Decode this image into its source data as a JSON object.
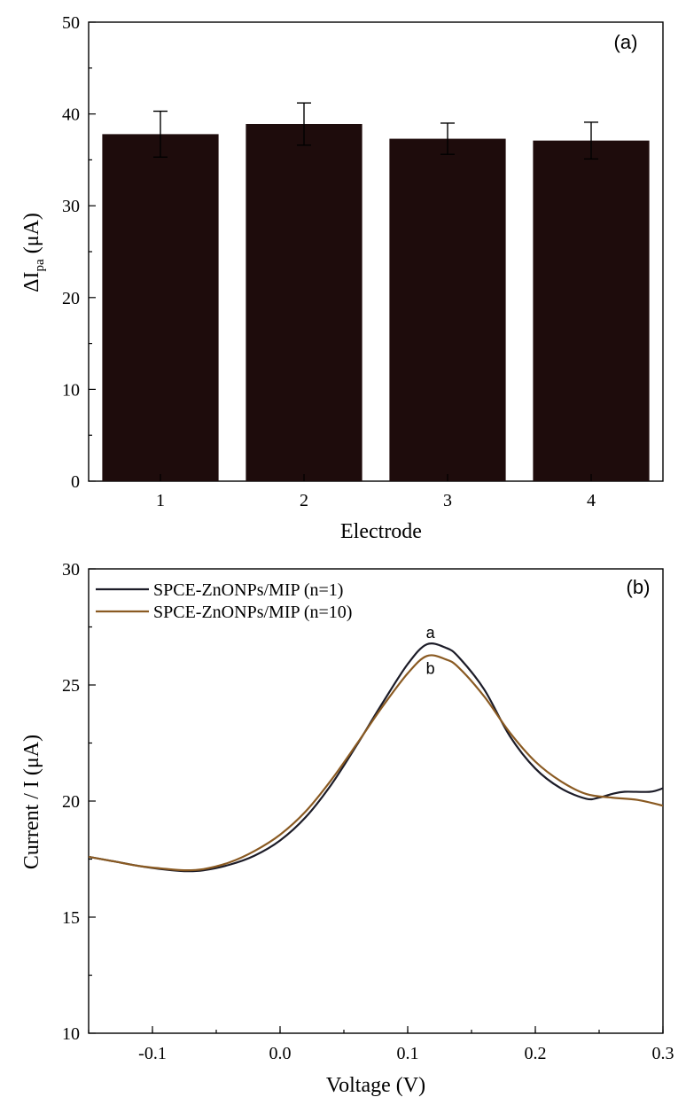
{
  "chart_data": [
    {
      "type": "bar",
      "panel_label": "(a)",
      "xlabel": "Electrode",
      "ylabel_main": "ΔI",
      "ylabel_sub": "pa",
      "ylabel_unit": "(μA)",
      "categories": [
        "1",
        "2",
        "3",
        "4"
      ],
      "values": [
        37.8,
        38.9,
        37.3,
        37.1
      ],
      "errors": [
        2.5,
        2.3,
        1.7,
        2.0
      ],
      "ylim": [
        0,
        50
      ],
      "yticks": [
        0,
        10,
        20,
        30,
        40,
        50
      ],
      "bar_color": "#1e0c0c"
    },
    {
      "type": "line",
      "panel_label": "(b)",
      "xlabel": "Voltage (V)",
      "ylabel": "Current / I (μA)",
      "xlim": [
        -0.15,
        0.3
      ],
      "ylim": [
        10,
        30
      ],
      "xticks": [
        -0.1,
        0.0,
        0.1,
        0.2,
        0.3
      ],
      "xtick_labels": [
        "-0.1",
        "0.0",
        "0.1",
        "0.2",
        "0.3"
      ],
      "yticks": [
        10,
        15,
        20,
        25,
        30
      ],
      "legend_position": "top-left",
      "series": [
        {
          "name": "SPCE-ZnONPs/MIP (n=1)",
          "color": "#1c1c28",
          "peak_label": "a",
          "points": [
            [
              -0.15,
              17.6
            ],
            [
              -0.13,
              17.4
            ],
            [
              -0.11,
              17.2
            ],
            [
              -0.09,
              17.05
            ],
            [
              -0.075,
              16.98
            ],
            [
              -0.06,
              17.02
            ],
            [
              -0.04,
              17.25
            ],
            [
              -0.02,
              17.65
            ],
            [
              0.0,
              18.3
            ],
            [
              0.02,
              19.3
            ],
            [
              0.04,
              20.7
            ],
            [
              0.06,
              22.4
            ],
            [
              0.08,
              24.2
            ],
            [
              0.1,
              25.9
            ],
            [
              0.115,
              26.75
            ],
            [
              0.13,
              26.6
            ],
            [
              0.14,
              26.2
            ],
            [
              0.16,
              24.8
            ],
            [
              0.18,
              22.8
            ],
            [
              0.2,
              21.4
            ],
            [
              0.22,
              20.55
            ],
            [
              0.24,
              20.1
            ],
            [
              0.25,
              20.15
            ],
            [
              0.26,
              20.3
            ],
            [
              0.27,
              20.4
            ],
            [
              0.29,
              20.4
            ],
            [
              0.3,
              20.55
            ]
          ]
        },
        {
          "name": "SPCE-ZnONPs/MIP (n=10)",
          "color": "#8a5a22",
          "peak_label": "b",
          "points": [
            [
              -0.15,
              17.6
            ],
            [
              -0.13,
              17.4
            ],
            [
              -0.11,
              17.2
            ],
            [
              -0.09,
              17.08
            ],
            [
              -0.075,
              17.02
            ],
            [
              -0.06,
              17.07
            ],
            [
              -0.04,
              17.35
            ],
            [
              -0.02,
              17.85
            ],
            [
              0.0,
              18.55
            ],
            [
              0.02,
              19.55
            ],
            [
              0.04,
              20.9
            ],
            [
              0.06,
              22.45
            ],
            [
              0.08,
              24.05
            ],
            [
              0.1,
              25.5
            ],
            [
              0.115,
              26.25
            ],
            [
              0.13,
              26.1
            ],
            [
              0.14,
              25.75
            ],
            [
              0.16,
              24.5
            ],
            [
              0.18,
              22.95
            ],
            [
              0.2,
              21.7
            ],
            [
              0.22,
              20.85
            ],
            [
              0.24,
              20.3
            ],
            [
              0.26,
              20.15
            ],
            [
              0.28,
              20.05
            ],
            [
              0.3,
              19.8
            ]
          ]
        }
      ]
    }
  ]
}
